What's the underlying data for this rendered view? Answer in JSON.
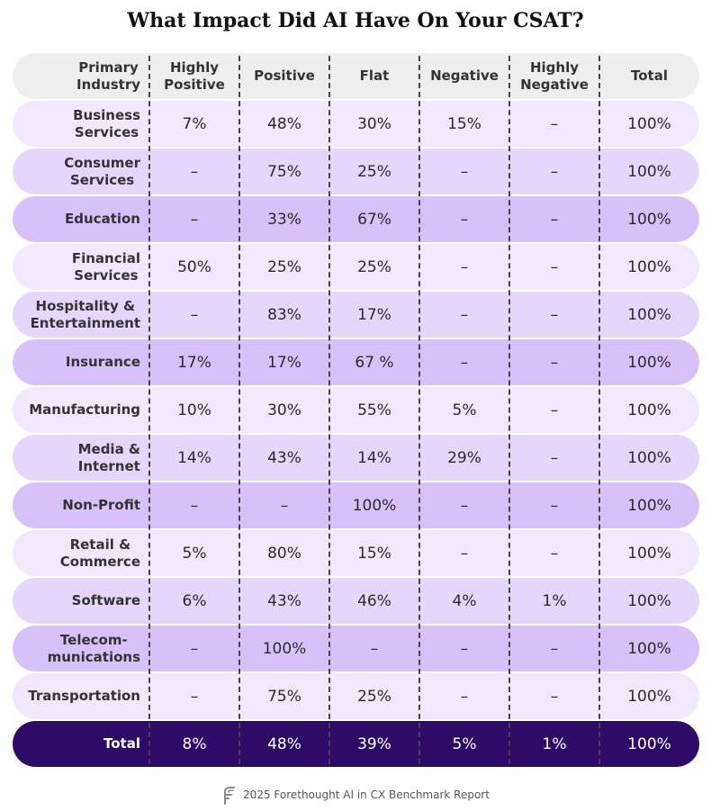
{
  "title": "What Impact Did AI Have On Your CSAT?",
  "footer": "2025 Forethought AI in CX Benchmark Report",
  "chart_data": {
    "type": "table",
    "title": "What Impact Did AI Have On Your CSAT?",
    "columns": [
      "Primary\nIndustry",
      "Highly\nPositive",
      "Positive",
      "Flat",
      "Negative",
      "Highly\nNegative",
      "Total"
    ],
    "rows": [
      {
        "label": "Business\nServices",
        "values": [
          "7%",
          "48%",
          "30%",
          "15%",
          "–",
          "100%"
        ]
      },
      {
        "label": "Consumer\nServices",
        "values": [
          "–",
          "75%",
          "25%",
          "–",
          "–",
          "100%"
        ]
      },
      {
        "label": "Education",
        "values": [
          "–",
          "33%",
          "67%",
          "–",
          "–",
          "100%"
        ]
      },
      {
        "label": "Financial\nServices",
        "values": [
          "50%",
          "25%",
          "25%",
          "–",
          "–",
          "100%"
        ]
      },
      {
        "label": "Hospitality &\nEntertainment",
        "values": [
          "–",
          "83%",
          "17%",
          "–",
          "–",
          "100%"
        ]
      },
      {
        "label": "Insurance",
        "values": [
          "17%",
          "17%",
          "67 %",
          "–",
          "–",
          "100%"
        ]
      },
      {
        "label": "Manufacturing",
        "values": [
          "10%",
          "30%",
          "55%",
          "5%",
          "–",
          "100%"
        ]
      },
      {
        "label": "Media &\nInternet",
        "values": [
          "14%",
          "43%",
          "14%",
          "29%",
          "–",
          "100%"
        ]
      },
      {
        "label": "Non-Profit",
        "values": [
          "–",
          "–",
          "100%",
          "–",
          "–",
          "100%"
        ]
      },
      {
        "label": "Retail &\nCommerce",
        "values": [
          "5%",
          "80%",
          "15%",
          "–",
          "–",
          "100%"
        ]
      },
      {
        "label": "Software",
        "values": [
          "6%",
          "43%",
          "46%",
          "4%",
          "1%",
          "100%"
        ]
      },
      {
        "label": "Telecom-\nmunications",
        "values": [
          "–",
          "100%",
          "–",
          "–",
          "–",
          "100%"
        ]
      },
      {
        "label": "Transportation",
        "values": [
          "–",
          "75%",
          "25%",
          "–",
          "–",
          "100%"
        ]
      }
    ],
    "total": {
      "label": "Total",
      "values": [
        "8%",
        "48%",
        "39%",
        "5%",
        "1%",
        "100%"
      ]
    }
  },
  "colors": {
    "header_bg": "#eeeeee",
    "light_row": "#f2e7fd",
    "medium_row": "#e6d6fb",
    "dark_row": "#d8c1f8",
    "total_row": "#2e0b66"
  }
}
